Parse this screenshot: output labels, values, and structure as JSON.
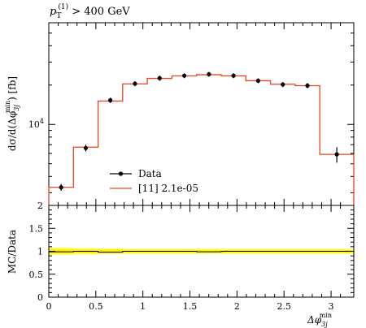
{
  "title": {
    "p": "p",
    "sub": "T",
    "sup": "(1)",
    "rest": " > 400 GeV"
  },
  "legend": {
    "data_label": "Data",
    "mc_label": "[11] 2.1e-05"
  },
  "ylabel_main": {
    "a": "dσ/d(Δφ",
    "sub": "3j",
    "sup": "min",
    "b": ") [fb]"
  },
  "ylabel_ratio": "MC/Data",
  "xlabel": {
    "a": "Δφ",
    "sub": "3j",
    "sup": "min"
  },
  "colors": {
    "mc": "#e8441e",
    "data": "#000000",
    "band_inner": "#ffee00",
    "band_outer": "#ffff66"
  },
  "chart_data": [
    {
      "type": "line",
      "title": "p_T^(1) > 400 GeV",
      "ylabel": "dσ/d(Δφ_3j^min) [fb]",
      "yscale": "log",
      "ylim": [
        2400,
        60000
      ],
      "xlim": [
        0,
        3.2416
      ],
      "yticks": [
        {
          "value": 10000,
          "label": "10^4"
        }
      ],
      "bins": [
        0,
        0.262,
        0.524,
        0.785,
        1.047,
        1.309,
        1.571,
        1.833,
        2.094,
        2.356,
        2.618,
        2.88,
        3.2416
      ],
      "series": [
        {
          "name": "Data",
          "kind": "points",
          "x": [
            0.131,
            0.393,
            0.654,
            0.916,
            1.178,
            1.44,
            1.702,
            1.963,
            2.225,
            2.487,
            2.749,
            3.061
          ],
          "y": [
            3300,
            6600,
            15300,
            20500,
            22600,
            23600,
            24200,
            23600,
            21600,
            20200,
            19800,
            18000
          ],
          "yerr": [
            200,
            400,
            700,
            900,
            1000,
            1000,
            1000,
            1000,
            900,
            900,
            900,
            800
          ],
          "last_y": 5900
        },
        {
          "name": "[11] 2.1e-05",
          "kind": "histogram",
          "values": [
            3300,
            6700,
            15100,
            20400,
            22500,
            23500,
            24000,
            23500,
            21600,
            20300,
            19800,
            18000
          ],
          "last_value": 5900
        }
      ]
    },
    {
      "type": "line",
      "ylabel": "MC/Data",
      "ylim": [
        0,
        2
      ],
      "yticks": [
        0,
        0.5,
        1,
        1.5,
        2
      ],
      "xticks": [
        0,
        0.5,
        1,
        1.5,
        2,
        2.5,
        3
      ],
      "xlabel": "Δφ_3j^min",
      "series": [
        {
          "name": "ratio",
          "values": [
            0.99,
            1.0,
            0.98,
            1.0,
            1.0,
            1.0,
            0.99,
            1.0,
            1.0,
            1.0,
            1.0,
            1.0
          ]
        },
        {
          "name": "band_outer",
          "half_width": [
            0.08,
            0.07,
            0.06,
            0.06,
            0.06,
            0.06,
            0.06,
            0.06,
            0.06,
            0.06,
            0.06,
            0.06
          ]
        },
        {
          "name": "band_inner",
          "half_width": [
            0.05,
            0.04,
            0.04,
            0.03,
            0.03,
            0.03,
            0.03,
            0.03,
            0.03,
            0.03,
            0.03,
            0.03
          ]
        }
      ]
    }
  ]
}
